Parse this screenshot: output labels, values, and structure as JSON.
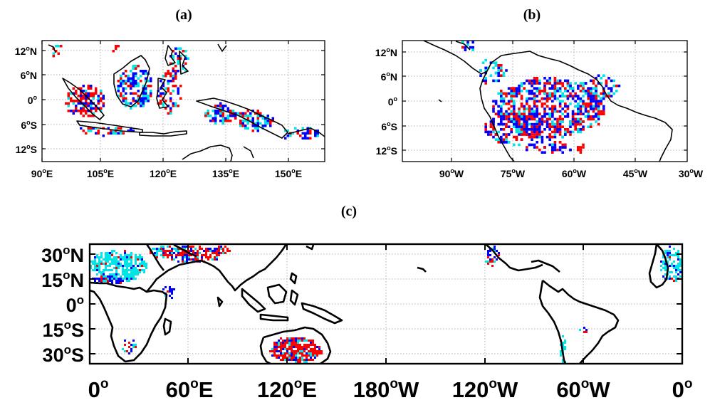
{
  "colors": {
    "red": "#ff0000",
    "blue": "#0000ff",
    "cyan": "#00e5e5",
    "coast": "#000000",
    "grid": "#9a9a9a"
  },
  "panels": [
    {
      "id": "a",
      "title": "(a)",
      "x_ticks": [
        {
          "deg": "90",
          "hemi": "E"
        },
        {
          "deg": "105",
          "hemi": "E"
        },
        {
          "deg": "120",
          "hemi": "E"
        },
        {
          "deg": "135",
          "hemi": "E"
        },
        {
          "deg": "150",
          "hemi": "E"
        }
      ],
      "y_ticks": [
        {
          "deg": "12",
          "hemi": "N"
        },
        {
          "deg": "6",
          "hemi": "N"
        },
        {
          "deg": "0",
          "hemi": ""
        },
        {
          "deg": "6",
          "hemi": "S"
        },
        {
          "deg": "12",
          "hemi": "S"
        }
      ]
    },
    {
      "id": "b",
      "title": "(b)",
      "x_ticks": [
        {
          "deg": "90",
          "hemi": "W"
        },
        {
          "deg": "75",
          "hemi": "W"
        },
        {
          "deg": "60",
          "hemi": "W"
        },
        {
          "deg": "45",
          "hemi": "W"
        },
        {
          "deg": "30",
          "hemi": "W"
        }
      ],
      "y_ticks": [
        {
          "deg": "12",
          "hemi": "N"
        },
        {
          "deg": "6",
          "hemi": "N"
        },
        {
          "deg": "0",
          "hemi": ""
        },
        {
          "deg": "6",
          "hemi": "S"
        },
        {
          "deg": "12",
          "hemi": "S"
        }
      ]
    },
    {
      "id": "c",
      "title": "(c)",
      "x_ticks": [
        {
          "deg": "0",
          "hemi": ""
        },
        {
          "deg": "60",
          "hemi": "E"
        },
        {
          "deg": "120",
          "hemi": "E"
        },
        {
          "deg": "180",
          "hemi": "W"
        },
        {
          "deg": "120",
          "hemi": "W"
        },
        {
          "deg": "60",
          "hemi": "W"
        },
        {
          "deg": "0",
          "hemi": ""
        }
      ],
      "y_ticks": [
        {
          "deg": "30",
          "hemi": "N"
        },
        {
          "deg": "15",
          "hemi": "N"
        },
        {
          "deg": "0",
          "hemi": ""
        },
        {
          "deg": "15",
          "hemi": "S"
        },
        {
          "deg": "30",
          "hemi": "S"
        }
      ]
    }
  ]
}
